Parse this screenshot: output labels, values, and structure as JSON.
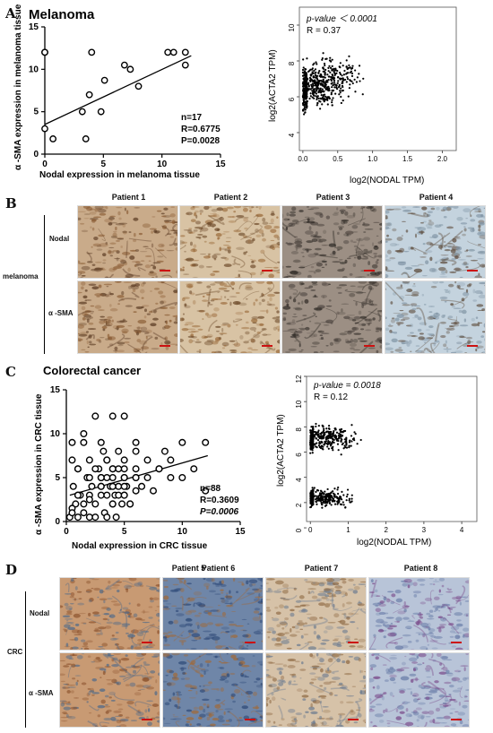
{
  "panels": {
    "A": "A",
    "B": "B",
    "C": "C",
    "D": "D"
  },
  "panelA": {
    "title": "Melanoma",
    "xlabel": "Nodal expression in melanoma tissue",
    "ylabel": "α -SMA expression in melanoma tissue",
    "stat_n": "n=17",
    "stat_r": "R=0.6775",
    "stat_p": "P=0.0028"
  },
  "panelA_right": {
    "pvalue": "p-value ＜ 0.0001",
    "r": "R = 0.37",
    "xlabel": "log2(NODAL TPM)",
    "ylabel": "log2(ACTA2 TPM)"
  },
  "panelB": {
    "headers": [
      "Patient 1",
      "Patient 2",
      "Patient 3",
      "Patient 4"
    ],
    "group_label": "melanoma",
    "row_labels": [
      "Nodal",
      "α -SMA"
    ]
  },
  "panelC": {
    "title": "Colorectal cancer",
    "xlabel": "Nodal expression in CRC tissue",
    "ylabel": "α -SMA expression in CRC tissue",
    "stat_n": "n=88",
    "stat_r": "R=0.3609",
    "stat_p": "P=0.0006"
  },
  "panelC_right": {
    "pvalue": "p-value = 0.0018",
    "r": "R = 0.12",
    "xlabel": "log2(NODAL TPM)",
    "ylabel": "log2(ACTA2 TPM)"
  },
  "panelD": {
    "headers": [
      "Patient 5",
      "Patient 6",
      "Patient 7",
      "Patient 8"
    ],
    "group_label": "CRC",
    "row_labels": [
      "Nodal",
      "α -SMA"
    ]
  },
  "chart_data": [
    {
      "id": "A-left",
      "type": "scatter",
      "xlim": [
        0,
        15
      ],
      "ylim": [
        0,
        15
      ],
      "xticks": [
        0,
        5,
        10,
        15
      ],
      "yticks": [
        0,
        5,
        10,
        15
      ],
      "x": [
        0,
        0,
        0,
        0.7,
        3.2,
        3.5,
        3.8,
        4,
        4.8,
        5.1,
        6.8,
        7.3,
        8,
        10.5,
        11,
        12,
        12
      ],
      "y": [
        12,
        12,
        3,
        1.8,
        5,
        1.8,
        7,
        12,
        5,
        8.7,
        10.5,
        10,
        8,
        12,
        12,
        10.5,
        12
      ],
      "fit": {
        "x": [
          0,
          12.5
        ],
        "y": [
          3.5,
          11.6
        ]
      }
    },
    {
      "id": "A-right",
      "type": "scatter",
      "xticks": [
        0,
        0.5,
        1.0,
        1.5,
        2.0
      ],
      "yticks": [
        4,
        6,
        8,
        10
      ],
      "xlim": [
        -0.05,
        2.2
      ],
      "ylim": [
        3,
        11
      ],
      "n_points": 600
    },
    {
      "id": "C-left",
      "type": "scatter",
      "xlim": [
        0,
        15
      ],
      "ylim": [
        0,
        15
      ],
      "xticks": [
        0,
        5,
        10,
        15
      ],
      "yticks": [
        0,
        5,
        10,
        15
      ],
      "x": [
        0.3,
        0.5,
        0.6,
        0.8,
        1,
        1,
        1.2,
        1.5,
        1.5,
        1.8,
        2,
        2,
        2.2,
        2.5,
        2.5,
        2.8,
        3,
        3,
        3,
        3.2,
        3.3,
        3.5,
        3.5,
        3.5,
        3.8,
        4,
        4,
        4,
        4,
        4.2,
        4.3,
        4.5,
        4.5,
        4.8,
        5,
        5,
        5,
        5,
        5,
        5.2,
        5.5,
        6,
        6,
        6,
        6,
        6,
        6.5,
        7,
        7,
        7.5,
        8,
        8,
        8.5,
        9,
        9,
        10,
        10,
        11,
        12,
        0.5,
        1,
        1.5,
        2,
        2.5,
        3,
        3.5,
        4,
        4.5,
        5,
        5.5,
        0.5,
        1,
        1.5,
        2,
        2.5,
        3,
        3.5,
        4,
        4.5,
        5,
        0.5,
        1,
        2,
        3,
        4,
        5,
        6,
        12
      ],
      "y": [
        0.5,
        9,
        4,
        2,
        0.5,
        6,
        3,
        9,
        1,
        5,
        7,
        0.5,
        4,
        2,
        12,
        6,
        3,
        5,
        9,
        8,
        1,
        0.5,
        3,
        7,
        4,
        2,
        6,
        12,
        5,
        3,
        0.5,
        4,
        8,
        2,
        3,
        5,
        6,
        7,
        12,
        4,
        2,
        9,
        5,
        8,
        6,
        3.5,
        4,
        7,
        5,
        3.5,
        6,
        6,
        8,
        7,
        5,
        5,
        9,
        6,
        3.5,
        7,
        3,
        10,
        5,
        0.5,
        4,
        5,
        2,
        6,
        4,
        2,
        1.5,
        3,
        2,
        3,
        6,
        5,
        7,
        4,
        3,
        5,
        1,
        6,
        2.5,
        4,
        6,
        3,
        5,
        9
      ],
      "fit": {
        "x": [
          0.3,
          12.2
        ],
        "y": [
          3.0,
          7.5
        ]
      }
    },
    {
      "id": "C-right",
      "type": "scatter",
      "xticks": [
        0,
        1,
        2,
        3,
        4
      ],
      "yticks": [
        0,
        2,
        4,
        6,
        8,
        10,
        12
      ],
      "xlim": [
        -0.1,
        4.4
      ],
      "ylim": [
        0.5,
        12
      ],
      "n_points": 700
    }
  ]
}
